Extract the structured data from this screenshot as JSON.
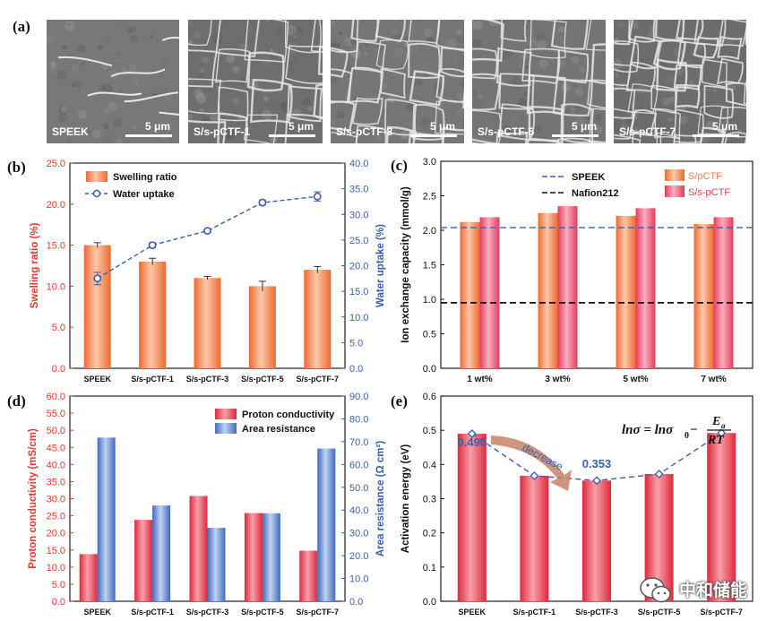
{
  "panel_a": {
    "label": "(a)",
    "images": [
      {
        "caption": "SPEEK",
        "scale": "5 μm"
      },
      {
        "caption": "S/s-pCTF-1",
        "scale": "5 μm"
      },
      {
        "caption": "S/s-pCTF-3",
        "scale": "5 μm"
      },
      {
        "caption": "S/s-pCTF-5",
        "scale": "5 μm"
      },
      {
        "caption": "S/s-pCTF-7",
        "scale": "5 μm"
      }
    ]
  },
  "watermark": {
    "text": "中和储能"
  },
  "colors": {
    "red": "#e8392f",
    "orange": "#f08048",
    "blue": "#3a5fb0",
    "pink": "#e8425a",
    "black": "#111111"
  },
  "chart_data": [
    {
      "id": "b",
      "label": "(b)",
      "type": "bar",
      "categories": [
        "SPEEK",
        "S/s-pCTF-1",
        "S/s-pCTF-3",
        "S/s-pCTF-5",
        "S/s-pCTF-7"
      ],
      "series": [
        {
          "name": "Swelling ratio",
          "type": "bar",
          "axis": "left",
          "values": [
            15.0,
            13.0,
            11.0,
            10.0,
            12.0
          ],
          "errors": [
            0.3,
            0.4,
            0.2,
            0.6,
            0.4
          ]
        },
        {
          "name": "Water uptake",
          "type": "line",
          "axis": "right",
          "values": [
            17.5,
            24.0,
            26.8,
            32.3,
            33.5
          ],
          "errors": [
            1.2,
            0.5,
            0.4,
            0.5,
            0.9
          ]
        }
      ],
      "ylabel": "Swelling ratio (%)",
      "y2label": "Water uptake (%)",
      "ylim": [
        0,
        25
      ],
      "yticks": [
        "0.0",
        "5.0",
        "10.0",
        "15.0",
        "20.0",
        "25.0"
      ],
      "y2lim": [
        0,
        40
      ],
      "y2ticks": [
        "0.0",
        "5.0",
        "10.0",
        "15.0",
        "20.0",
        "25.0",
        "30.0",
        "35.0",
        "40.0"
      ],
      "legend": "top-left"
    },
    {
      "id": "c",
      "label": "(c)",
      "type": "bar",
      "categories": [
        "1 wt%",
        "3 wt%",
        "5 wt%",
        "7 wt%"
      ],
      "series": [
        {
          "name": "S/pCTF",
          "values": [
            2.12,
            2.25,
            2.21,
            2.09
          ]
        },
        {
          "name": "S/s-pCTF",
          "values": [
            2.19,
            2.35,
            2.32,
            2.19
          ]
        }
      ],
      "reference_lines": [
        {
          "name": "SPEEK",
          "value": 2.04,
          "style": "dashed",
          "color": "#3a5fb0"
        },
        {
          "name": "Nafion212",
          "value": 0.95,
          "style": "dashed",
          "color": "#111111"
        }
      ],
      "ylabel": "Ion exchange capacity (mmol/g)",
      "ylim": [
        0,
        3.0
      ],
      "yticks": [
        "0.0",
        "0.5",
        "1.0",
        "1.5",
        "2.0",
        "2.5",
        "3.0"
      ],
      "legend": "top-right"
    },
    {
      "id": "d",
      "label": "(d)",
      "type": "bar",
      "categories": [
        "SPEEK",
        "S/s-pCTF-1",
        "S/s-pCTF-3",
        "S/s-pCTF-5",
        "S/s-pCTF-7"
      ],
      "series": [
        {
          "name": "Proton conductivity",
          "axis": "left",
          "values": [
            13.8,
            23.8,
            30.8,
            25.8,
            14.8
          ]
        },
        {
          "name": "Area resistance",
          "axis": "right",
          "values": [
            71.8,
            42.0,
            32.2,
            38.6,
            67.0
          ]
        }
      ],
      "ylabel": "Proton conductivity (mS/cm)",
      "y2label": "Area resistance (Ω cm²)",
      "ylim": [
        0,
        60
      ],
      "yticks": [
        "0.0",
        "5.0",
        "10.0",
        "15.0",
        "20.0",
        "25.0",
        "30.0",
        "35.0",
        "40.0",
        "45.0",
        "50.0",
        "55.0",
        "60.0"
      ],
      "y2lim": [
        0,
        90
      ],
      "y2ticks": [
        "0.0",
        "10.0",
        "20.0",
        "30.0",
        "40.0",
        "50.0",
        "60.0",
        "70.0",
        "80.0",
        "90.0"
      ],
      "legend": "top-right"
    },
    {
      "id": "e",
      "label": "(e)",
      "type": "bar",
      "categories": [
        "SPEEK",
        "S/s-pCTF-1",
        "S/s-pCTF-3",
        "S/s-pCTF-5",
        "S/s-pCTF-7"
      ],
      "series": [
        {
          "name": "Activation energy",
          "values": [
            0.49,
            0.367,
            0.353,
            0.372,
            0.492
          ]
        }
      ],
      "annotations": [
        "0.490",
        "0.353",
        "decrease"
      ],
      "ylabel": "Activation energy (eV)",
      "ylim": [
        0,
        0.6
      ],
      "yticks": [
        "0.0",
        "0.1",
        "0.2",
        "0.3",
        "0.4",
        "0.5",
        "0.6"
      ],
      "equation": {
        "lhs": "lnσ = lnσ",
        "sub": "0",
        "minus": " − ",
        "num": "E",
        "num_sub": "a",
        "den": "RT"
      }
    }
  ]
}
